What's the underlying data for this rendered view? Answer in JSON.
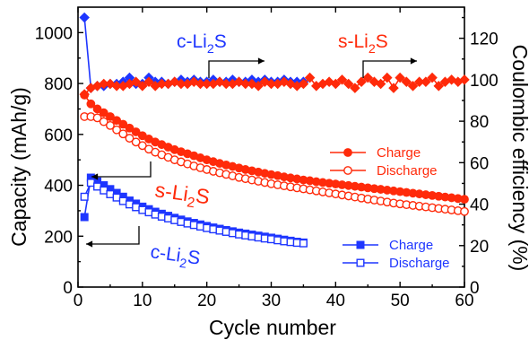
{
  "chart_data": {
    "type": "line",
    "xlabel": "Cycle number",
    "ylabel_left": "Capacity (mAh/g)",
    "ylabel_right": "Coulombic efficiency (%)",
    "xlim": [
      0,
      60
    ],
    "ylim_left": [
      0,
      1100
    ],
    "ylim_right": [
      0,
      135
    ],
    "x_ticks": [
      0,
      10,
      20,
      30,
      40,
      50,
      60
    ],
    "y_left_ticks": [
      0,
      200,
      400,
      600,
      800,
      1000
    ],
    "y_right_ticks": [
      0,
      20,
      40,
      60,
      80,
      100,
      120
    ],
    "y_right_tick_labels": [
      "0",
      "20",
      "40",
      "60",
      "80",
      "100",
      "120"
    ],
    "colors": {
      "red": "#ff2a0a",
      "blue": "#1e36ff"
    },
    "series": [
      {
        "name": "Charge",
        "group": "s-Li2S",
        "axis": "left",
        "color": "#ff2a0a",
        "marker": "circle-filled",
        "x": [
          1,
          2,
          3,
          4,
          5,
          6,
          7,
          8,
          9,
          10,
          11,
          12,
          13,
          14,
          15,
          16,
          17,
          18,
          19,
          20,
          21,
          22,
          23,
          24,
          25,
          26,
          27,
          28,
          29,
          30,
          31,
          32,
          33,
          34,
          35,
          36,
          37,
          38,
          39,
          40,
          41,
          42,
          43,
          44,
          45,
          46,
          47,
          48,
          49,
          50,
          51,
          52,
          53,
          54,
          55,
          56,
          57,
          58,
          59,
          60
        ],
        "values": [
          755,
          720,
          700,
          685,
          670,
          655,
          640,
          625,
          610,
          595,
          582,
          570,
          560,
          550,
          540,
          532,
          524,
          516,
          508,
          500,
          493,
          486,
          480,
          474,
          468,
          462,
          457,
          452,
          447,
          442,
          438,
          433,
          429,
          425,
          421,
          418,
          414,
          411,
          408,
          405,
          402,
          399,
          396,
          393,
          390,
          387,
          384,
          381,
          378,
          375,
          372,
          369,
          366,
          363,
          360,
          357,
          354,
          351,
          348,
          345
        ]
      },
      {
        "name": "Discharge",
        "group": "s-Li2S",
        "axis": "left",
        "color": "#ff2a0a",
        "marker": "circle-open",
        "x": [
          1,
          2,
          3,
          4,
          5,
          6,
          7,
          8,
          9,
          10,
          11,
          12,
          13,
          14,
          15,
          16,
          17,
          18,
          19,
          20,
          21,
          22,
          23,
          24,
          25,
          26,
          27,
          28,
          29,
          30,
          31,
          32,
          33,
          34,
          35,
          36,
          37,
          38,
          39,
          40,
          41,
          42,
          43,
          44,
          45,
          46,
          47,
          48,
          49,
          50,
          51,
          52,
          53,
          54,
          55,
          56,
          57,
          58,
          59,
          60
        ],
        "values": [
          670,
          670,
          665,
          650,
          635,
          618,
          602,
          585,
          570,
          556,
          542,
          530,
          520,
          510,
          500,
          492,
          484,
          476,
          469,
          462,
          455,
          449,
          443,
          437,
          431,
          426,
          421,
          416,
          411,
          406,
          402,
          398,
          394,
          390,
          386,
          382,
          378,
          374,
          370,
          366,
          362,
          358,
          354,
          350,
          346,
          342,
          338,
          334,
          330,
          327,
          324,
          321,
          318,
          315,
          312,
          309,
          306,
          303,
          300,
          297
        ]
      },
      {
        "name": "Charge",
        "group": "c-Li2S",
        "axis": "left",
        "color": "#1e36ff",
        "marker": "square-filled",
        "x": [
          1,
          2,
          3,
          4,
          5,
          6,
          7,
          8,
          9,
          10,
          11,
          12,
          13,
          14,
          15,
          16,
          17,
          18,
          19,
          20,
          21,
          22,
          23,
          24,
          25,
          26,
          27,
          28,
          29,
          30,
          31,
          32,
          33,
          34,
          35
        ],
        "values": [
          275,
          430,
          415,
          400,
          385,
          370,
          355,
          340,
          328,
          316,
          306,
          296,
          288,
          280,
          272,
          265,
          258,
          252,
          246,
          240,
          234,
          229,
          224,
          219,
          214,
          210,
          206,
          202,
          198,
          194,
          190,
          186,
          182,
          178,
          175
        ]
      },
      {
        "name": "Discharge",
        "group": "c-Li2S",
        "axis": "left",
        "color": "#1e36ff",
        "marker": "square-open",
        "x": [
          1,
          2,
          3,
          4,
          5,
          6,
          7,
          8,
          9,
          10,
          11,
          12,
          13,
          14,
          15,
          16,
          17,
          18,
          19,
          20,
          21,
          22,
          23,
          24,
          25,
          26,
          27,
          28,
          29,
          30,
          31,
          32,
          33,
          34,
          35
        ],
        "values": [
          355,
          410,
          395,
          380,
          365,
          352,
          338,
          325,
          314,
          303,
          294,
          285,
          277,
          270,
          263,
          256,
          250,
          244,
          238,
          232,
          227,
          222,
          217,
          212,
          207,
          203,
          199,
          195,
          191,
          188,
          184,
          180,
          177,
          174,
          172
        ]
      },
      {
        "name": "c-Li2S Coulombic efficiency",
        "axis": "right",
        "color": "#1e36ff",
        "marker": "diamond-filled",
        "x": [
          1,
          2,
          3,
          4,
          5,
          6,
          7,
          8,
          9,
          10,
          11,
          12,
          13,
          14,
          15,
          16,
          17,
          18,
          19,
          20,
          21,
          22,
          23,
          24,
          25,
          26,
          27,
          28,
          29,
          30,
          31,
          32,
          33,
          34,
          35
        ],
        "values": [
          130,
          96,
          97,
          97,
          98,
          98,
          99,
          101,
          98,
          98,
          101,
          99,
          99,
          98,
          99,
          100,
          99,
          100,
          99,
          99,
          100,
          99,
          99,
          100,
          99,
          99,
          100,
          99,
          100,
          99,
          99,
          100,
          99,
          99,
          99
        ]
      },
      {
        "name": "s-Li2S Coulombic efficiency",
        "axis": "right",
        "color": "#ff2a0a",
        "marker": "diamond-filled",
        "x": [
          1,
          2,
          3,
          4,
          5,
          6,
          7,
          8,
          9,
          10,
          11,
          12,
          13,
          14,
          15,
          16,
          17,
          18,
          19,
          20,
          21,
          22,
          23,
          24,
          25,
          26,
          27,
          28,
          29,
          30,
          31,
          32,
          33,
          34,
          35,
          36,
          37,
          38,
          39,
          40,
          41,
          42,
          43,
          44,
          45,
          46,
          47,
          48,
          49,
          50,
          51,
          52,
          53,
          54,
          55,
          56,
          57,
          58,
          59,
          60
        ],
        "values": [
          93,
          96,
          97,
          98,
          98,
          97,
          97,
          98,
          99,
          97,
          99,
          97,
          98,
          98,
          99,
          98,
          98,
          99,
          98,
          98,
          98,
          99,
          98,
          98,
          99,
          98,
          98,
          97,
          99,
          98,
          98,
          99,
          98,
          97,
          98,
          101,
          97,
          98,
          99,
          98,
          100,
          98,
          96,
          99,
          101,
          99,
          98,
          101,
          96,
          101,
          99,
          97,
          99,
          99,
          101,
          97,
          99,
          100,
          99,
          100
        ]
      }
    ],
    "annotations": [
      {
        "id": "c_top",
        "text": "c-Li",
        "sub": "2",
        "tail": "S",
        "color": "#1e36ff"
      },
      {
        "id": "s_top",
        "text": "s-Li",
        "sub": "2",
        "tail": "S",
        "color": "#ff2a0a"
      },
      {
        "id": "s_mid",
        "text": "s-Li",
        "sub": "2",
        "tail": "S",
        "color": "#ff2a0a"
      },
      {
        "id": "c_low",
        "text": "c-Li",
        "sub": "2",
        "tail": "S",
        "color": "#1e36ff"
      }
    ],
    "legend_red": [
      {
        "label": "Charge",
        "marker": "circle-filled"
      },
      {
        "label": "Discharge",
        "marker": "circle-open"
      }
    ],
    "legend_blue": [
      {
        "label": "Charge",
        "marker": "square-filled"
      },
      {
        "label": "Discharge",
        "marker": "square-open"
      }
    ]
  }
}
